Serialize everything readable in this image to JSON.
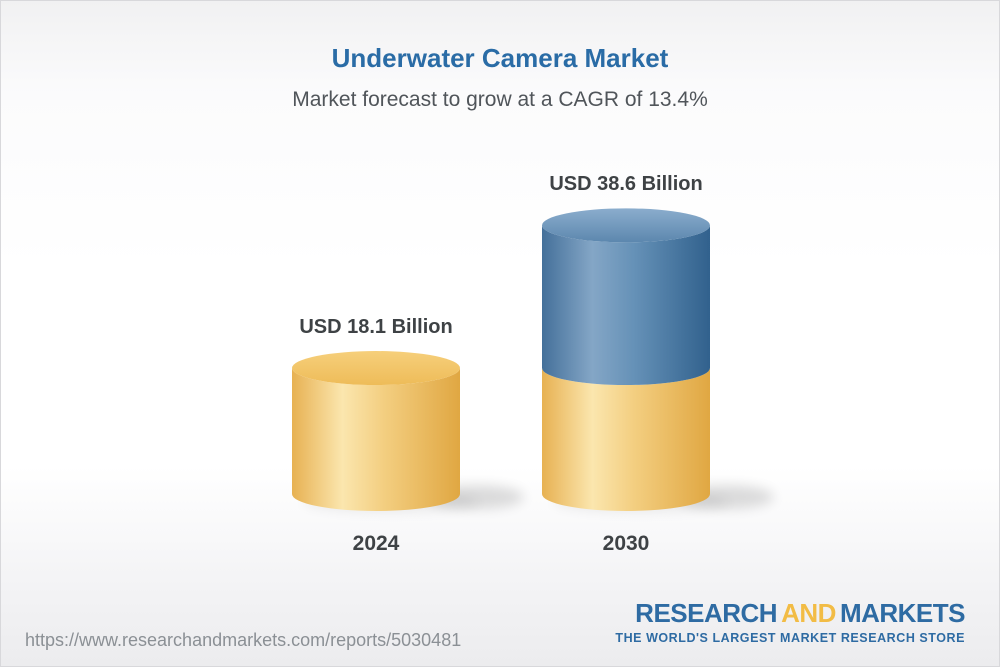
{
  "header": {
    "title": "Underwater Camera Market",
    "subtitle": "Market forecast to grow at a CAGR of 13.4%"
  },
  "chart_data": {
    "type": "bar",
    "subtype": "3d-cylinder-stacked",
    "title": "Underwater Camera Market",
    "unit": "USD Billion",
    "cagr_percent": 13.4,
    "categories": [
      "2024",
      "2030"
    ],
    "values": [
      18.1,
      38.6
    ],
    "bars": [
      {
        "year": "2024",
        "value": 18.1,
        "value_label": "USD 18.1 Billion",
        "segments": [
          {
            "color_key": "gold",
            "value": 18.1
          }
        ]
      },
      {
        "year": "2030",
        "value": 38.6,
        "value_label": "USD 38.6 Billion",
        "segments": [
          {
            "color_key": "gold",
            "value": 18.1
          },
          {
            "color_key": "blue",
            "value": 20.5
          }
        ]
      }
    ],
    "colors": {
      "gold": "#F0C269",
      "blue": "#4C7BA6",
      "title_blue": "#2A6CA6",
      "label_dark": "#3E4245"
    },
    "legend_position": "none",
    "grid": false
  },
  "footer": {
    "url": "https://www.researchandmarkets.com/reports/5030481",
    "logo": {
      "part1": "RESEARCH",
      "part2": "AND",
      "part3": "MARKETS",
      "tagline": "THE WORLD'S LARGEST MARKET RESEARCH STORE"
    }
  }
}
